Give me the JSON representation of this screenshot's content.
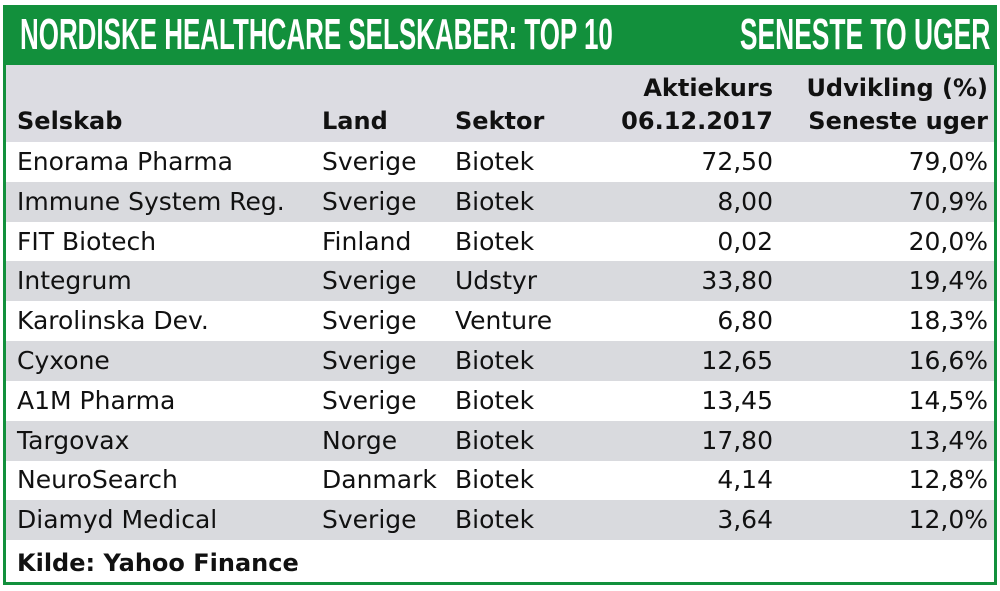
{
  "header": {
    "title_left": "NORDISKE HEALTHCARE SELSKABER: TOP 10",
    "title_right": "SENESTE TO UGER"
  },
  "colors": {
    "green": "#12903c",
    "header_bg": "#dcdce2",
    "alt_row": "#d9dade"
  },
  "chart_data": {
    "type": "table",
    "title": "NORDISKE HEALTHCARE SELSKABER: TOP 10",
    "subtitle": "SENESTE TO UGER",
    "columns": [
      {
        "line1": "",
        "line2": "Selskab"
      },
      {
        "line1": "",
        "line2": "Land"
      },
      {
        "line1": "",
        "line2": "Sektor"
      },
      {
        "line1": "Aktiekurs",
        "line2": "06.12.2017"
      },
      {
        "line1": "Udvikling (%)",
        "line2": "Seneste uger"
      }
    ],
    "rows": [
      [
        "Enorama Pharma",
        "Sverige",
        "Biotek",
        "72,50",
        "79,0%"
      ],
      [
        "Immune System Reg.",
        "Sverige",
        "Biotek",
        "8,00",
        "70,9%"
      ],
      [
        "FIT Biotech",
        "Finland",
        "Biotek",
        "0,02",
        "20,0%"
      ],
      [
        "Integrum",
        "Sverige",
        "Udstyr",
        "33,80",
        "19,4%"
      ],
      [
        "Karolinska Dev.",
        "Sverige",
        "Venture",
        "6,80",
        "18,3%"
      ],
      [
        "Cyxone",
        "Sverige",
        "Biotek",
        "12,65",
        "16,6%"
      ],
      [
        "A1M Pharma",
        "Sverige",
        "Biotek",
        "13,45",
        "14,5%"
      ],
      [
        "Targovax",
        "Norge",
        "Biotek",
        "17,80",
        "13,4%"
      ],
      [
        "NeuroSearch",
        "Danmark",
        "Biotek",
        "4,14",
        "12,8%"
      ],
      [
        "Diamyd Medical",
        "Sverige",
        "Biotek",
        "3,64",
        "12,0%"
      ]
    ],
    "source": "Kilde: Yahoo Finance"
  }
}
